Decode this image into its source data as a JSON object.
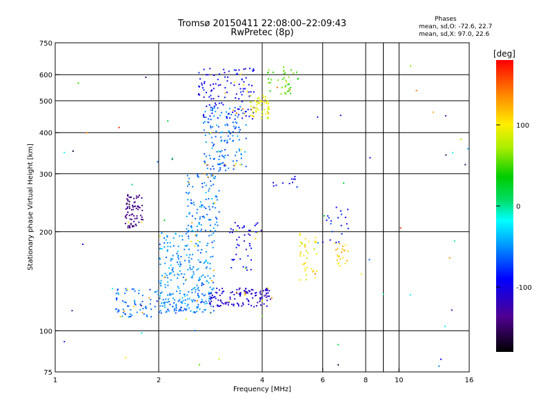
{
  "header": {
    "title_line1": "Tromsø 20150411 22:08:00–22:09:43",
    "title_line2": "RwPretec (8p)",
    "stats_title": "Phases",
    "stats_o": "mean, sd,O: -72.6, 22.7",
    "stats_x": "mean, sd,X:  97.0, 22.6"
  },
  "chart_data": {
    "type": "scatter",
    "xlabel": "Frequency [MHz]",
    "ylabel": "Stationary phase Virtual Height [km]",
    "x_scale": "log",
    "y_scale": "log",
    "xlim": [
      1,
      16
    ],
    "ylim": [
      75,
      750
    ],
    "x_ticks": [
      1,
      2,
      4,
      6,
      8,
      10,
      16
    ],
    "x_tick_labels": [
      "1",
      "2",
      "4",
      "6",
      "8",
      "10",
      "16"
    ],
    "x_grid": [
      2,
      4,
      6,
      8,
      9,
      10
    ],
    "y_ticks": [
      75,
      100,
      200,
      300,
      400,
      500,
      600,
      750
    ],
    "y_tick_labels": [
      "75",
      "100",
      "200",
      "300",
      "400",
      "500",
      "600",
      "750"
    ],
    "y_grid": [
      100,
      200,
      300,
      400,
      500,
      600
    ],
    "grid": true,
    "colorbar": {
      "label": "[deg]",
      "range": [
        -180,
        180
      ],
      "ticks": [
        100,
        0,
        -100
      ],
      "tick_labels": [
        "100",
        "0",
        "-100"
      ]
    },
    "series": [
      {
        "name": "O",
        "mean_phase": -72.6,
        "sd": 22.7
      },
      {
        "name": "X",
        "mean_phase": 97.0,
        "sd": 22.6
      }
    ],
    "clusters": [
      {
        "f": [
          1.5,
          2.0
        ],
        "h": [
          110,
          135
        ],
        "phase": -60,
        "n": 70,
        "spread": "uniform"
      },
      {
        "f": [
          2.0,
          2.9
        ],
        "h": [
          113,
          125
        ],
        "phase": -55,
        "n": 90,
        "spread": "uniform"
      },
      {
        "f": [
          2.8,
          4.3
        ],
        "h": [
          118,
          135
        ],
        "phase": -110,
        "n": 130,
        "spread": "uniform"
      },
      {
        "f": [
          2.0,
          2.9
        ],
        "h": [
          125,
          200
        ],
        "phase": -50,
        "n": 220,
        "spread": "uniform"
      },
      {
        "f": [
          2.4,
          3.0
        ],
        "h": [
          200,
          300
        ],
        "phase": -55,
        "n": 110,
        "spread": "uniform"
      },
      {
        "f": [
          2.7,
          3.6
        ],
        "h": [
          300,
          480
        ],
        "phase": -60,
        "n": 150,
        "spread": "uniform"
      },
      {
        "f": [
          2.6,
          3.8
        ],
        "h": [
          440,
          630
        ],
        "phase": -95,
        "n": 120,
        "spread": "uniform"
      },
      {
        "f": [
          3.7,
          4.2
        ],
        "h": [
          440,
          520
        ],
        "phase": 95,
        "n": 60,
        "spread": "uniform"
      },
      {
        "f": [
          4.1,
          5.1
        ],
        "h": [
          520,
          640
        ],
        "phase": 50,
        "n": 40,
        "spread": "uniform"
      },
      {
        "f": [
          1.6,
          1.8
        ],
        "h": [
          205,
          260
        ],
        "phase": -140,
        "n": 80,
        "spread": "uniform"
      },
      {
        "f": [
          3.2,
          3.9
        ],
        "h": [
          150,
          215
        ],
        "phase": -100,
        "n": 45,
        "spread": "uniform"
      },
      {
        "f": [
          5.1,
          5.8
        ],
        "h": [
          140,
          200
        ],
        "phase": 100,
        "n": 40,
        "spread": "uniform"
      },
      {
        "f": [
          6.5,
          7.1
        ],
        "h": [
          155,
          185
        ],
        "phase": 115,
        "n": 22,
        "spread": "uniform"
      },
      {
        "f": [
          6.0,
          7.2
        ],
        "h": [
          180,
          240
        ],
        "phase": -90,
        "n": 20,
        "spread": "uniform"
      },
      {
        "f": [
          4.3,
          5.1
        ],
        "h": [
          275,
          295
        ],
        "phase": -95,
        "n": 10,
        "spread": "uniform"
      },
      {
        "f": [
          1.0,
          16.0
        ],
        "h": [
          78,
          650
        ],
        "phase": -60,
        "n": 60,
        "spread": "scatter"
      }
    ]
  }
}
